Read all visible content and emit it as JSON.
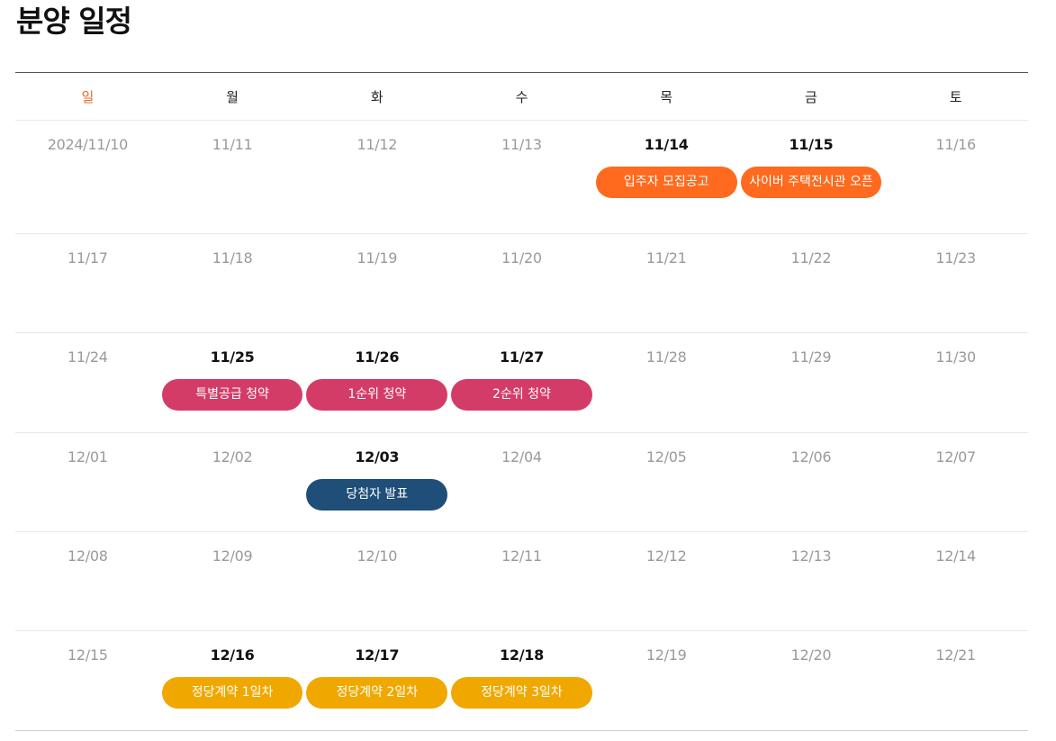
{
  "page_title": "분양 일정",
  "weekdays": [
    "일",
    "월",
    "화",
    "수",
    "목",
    "금",
    "토"
  ],
  "colors": {
    "sunday": "#e8692b",
    "orange": "#ff6a1e",
    "pink": "#d43c68",
    "navy": "#1f4e79",
    "yellow": "#f0a800"
  },
  "weeks": [
    {
      "days": [
        {
          "date": "2024/11/10"
        },
        {
          "date": "11/11"
        },
        {
          "date": "11/12"
        },
        {
          "date": "11/13"
        },
        {
          "date": "11/14",
          "active": true,
          "events": [
            {
              "label": "입주자 모집공고",
              "color": "orange"
            }
          ]
        },
        {
          "date": "11/15",
          "active": true,
          "events": [
            {
              "label": "사이버 주택전시관 오픈",
              "color": "orange"
            }
          ]
        },
        {
          "date": "11/16"
        }
      ]
    },
    {
      "days": [
        {
          "date": "11/17"
        },
        {
          "date": "11/18"
        },
        {
          "date": "11/19"
        },
        {
          "date": "11/20"
        },
        {
          "date": "11/21"
        },
        {
          "date": "11/22"
        },
        {
          "date": "11/23"
        }
      ]
    },
    {
      "days": [
        {
          "date": "11/24"
        },
        {
          "date": "11/25",
          "active": true,
          "events": [
            {
              "label": "특별공급 청약",
              "color": "pink"
            }
          ]
        },
        {
          "date": "11/26",
          "active": true,
          "events": [
            {
              "label": "1순위 청약",
              "color": "pink"
            }
          ]
        },
        {
          "date": "11/27",
          "active": true,
          "events": [
            {
              "label": "2순위 청약",
              "color": "pink"
            }
          ]
        },
        {
          "date": "11/28"
        },
        {
          "date": "11/29"
        },
        {
          "date": "11/30"
        }
      ]
    },
    {
      "days": [
        {
          "date": "12/01"
        },
        {
          "date": "12/02"
        },
        {
          "date": "12/03",
          "active": true,
          "events": [
            {
              "label": "당첨자 발표",
              "color": "navy"
            }
          ]
        },
        {
          "date": "12/04"
        },
        {
          "date": "12/05"
        },
        {
          "date": "12/06"
        },
        {
          "date": "12/07"
        }
      ]
    },
    {
      "days": [
        {
          "date": "12/08"
        },
        {
          "date": "12/09"
        },
        {
          "date": "12/10"
        },
        {
          "date": "12/11"
        },
        {
          "date": "12/12"
        },
        {
          "date": "12/13"
        },
        {
          "date": "12/14"
        }
      ]
    },
    {
      "days": [
        {
          "date": "12/15"
        },
        {
          "date": "12/16",
          "active": true,
          "events": [
            {
              "label": "정당계약 1일차",
              "color": "yellow"
            }
          ]
        },
        {
          "date": "12/17",
          "active": true,
          "events": [
            {
              "label": "정당계약 2일차",
              "color": "yellow"
            }
          ]
        },
        {
          "date": "12/18",
          "active": true,
          "events": [
            {
              "label": "정당계약 3일차",
              "color": "yellow"
            }
          ]
        },
        {
          "date": "12/19"
        },
        {
          "date": "12/20"
        },
        {
          "date": "12/21"
        }
      ]
    }
  ]
}
